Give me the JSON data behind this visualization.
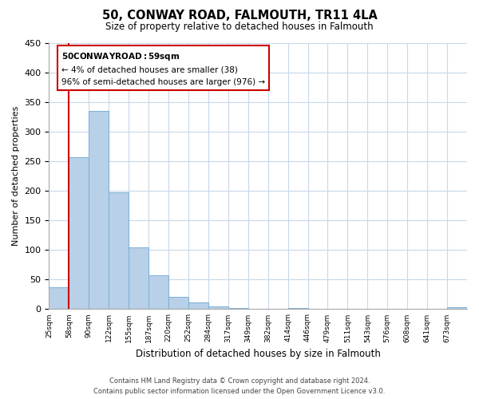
{
  "title": "50, CONWAY ROAD, FALMOUTH, TR11 4LA",
  "subtitle": "Size of property relative to detached houses in Falmouth",
  "xlabel": "Distribution of detached houses by size in Falmouth",
  "ylabel": "Number of detached properties",
  "bar_labels": [
    "25sqm",
    "58sqm",
    "90sqm",
    "122sqm",
    "155sqm",
    "187sqm",
    "220sqm",
    "252sqm",
    "284sqm",
    "317sqm",
    "349sqm",
    "382sqm",
    "414sqm",
    "446sqm",
    "479sqm",
    "511sqm",
    "543sqm",
    "576sqm",
    "608sqm",
    "641sqm",
    "673sqm"
  ],
  "bar_heights": [
    37,
    257,
    335,
    197,
    105,
    57,
    21,
    11,
    5,
    2,
    0,
    0,
    2,
    0,
    0,
    0,
    0,
    0,
    0,
    0,
    3
  ],
  "bar_color": "#b8d0e8",
  "bar_edge_color": "#7bafd4",
  "vline_x": 1,
  "vline_color": "#cc0000",
  "ylim": [
    0,
    450
  ],
  "yticks": [
    0,
    50,
    100,
    150,
    200,
    250,
    300,
    350,
    400,
    450
  ],
  "annotation_title": "50 CONWAY ROAD: 59sqm",
  "annotation_line1": "← 4% of detached houses are smaller (38)",
  "annotation_line2": "96% of semi-detached houses are larger (976) →",
  "annotation_box_color": "#ffffff",
  "annotation_box_edge_color": "#cc0000",
  "footer_line1": "Contains HM Land Registry data © Crown copyright and database right 2024.",
  "footer_line2": "Contains public sector information licensed under the Open Government Licence v3.0.",
  "background_color": "#ffffff",
  "grid_color": "#c8d8e8"
}
